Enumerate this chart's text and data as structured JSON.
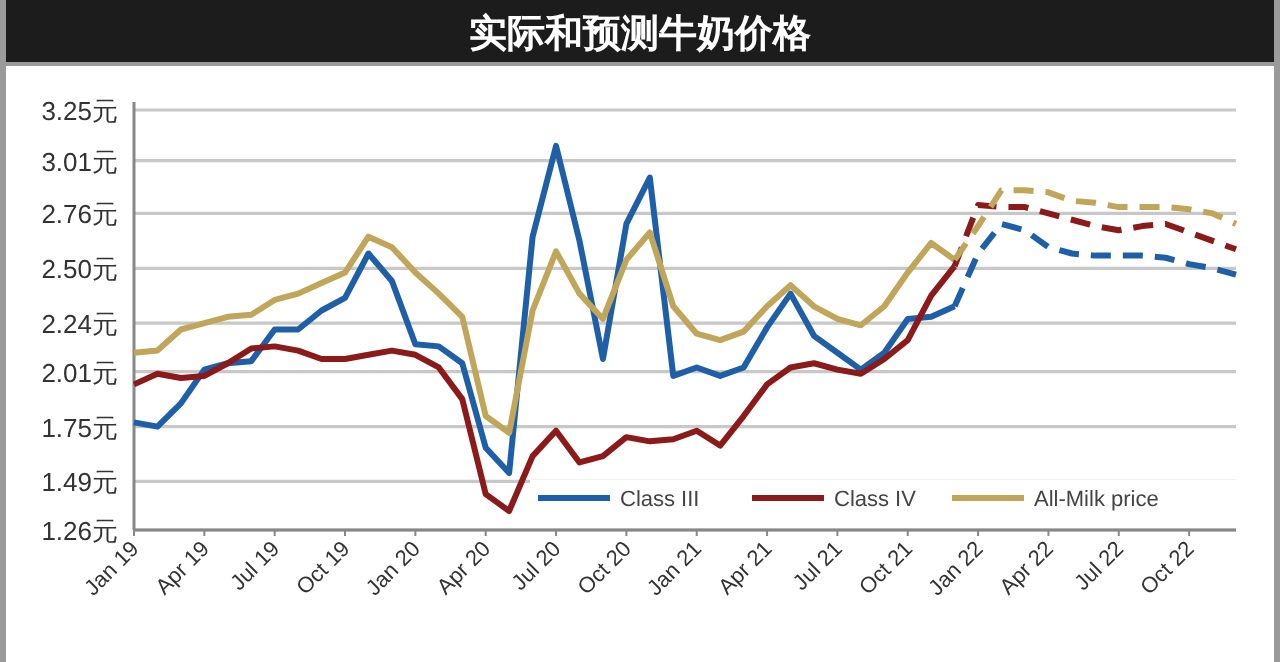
{
  "chart_data": {
    "type": "line",
    "title": "实际和预测牛奶价格",
    "xlim": [
      "2019-01",
      "2022-12"
    ],
    "xticks": [
      {
        "value": "2019-01",
        "label": "Jan 19"
      },
      {
        "value": "2019-04",
        "label": "Apr 19"
      },
      {
        "value": "2019-07",
        "label": "Jul 19"
      },
      {
        "value": "2019-10",
        "label": "Oct 19"
      },
      {
        "value": "2020-01",
        "label": "Jan 20"
      },
      {
        "value": "2020-04",
        "label": "Apr 20"
      },
      {
        "value": "2020-07",
        "label": "Jul 20"
      },
      {
        "value": "2020-10",
        "label": "Oct 20"
      },
      {
        "value": "2021-01",
        "label": "Jan 21"
      },
      {
        "value": "2021-04",
        "label": "Apr 21"
      },
      {
        "value": "2021-07",
        "label": "Jul 21"
      },
      {
        "value": "2021-10",
        "label": "Oct 21"
      },
      {
        "value": "2022-01",
        "label": "Jan 22"
      },
      {
        "value": "2022-04",
        "label": "Apr 22"
      },
      {
        "value": "2022-07",
        "label": "Jul 22"
      },
      {
        "value": "2022-10",
        "label": "Oct 22"
      }
    ],
    "ylim": [
      1.26,
      3.25
    ],
    "yticks": [
      {
        "value": 1.26,
        "label": "1.26元"
      },
      {
        "value": 1.49,
        "label": "1.49元"
      },
      {
        "value": 1.75,
        "label": "1.75元"
      },
      {
        "value": 2.01,
        "label": "2.01元"
      },
      {
        "value": 2.24,
        "label": "2.24元"
      },
      {
        "value": 2.5,
        "label": "2.50元"
      },
      {
        "value": 2.76,
        "label": "2.76元"
      },
      {
        "value": 3.01,
        "label": "3.01元"
      },
      {
        "value": 3.25,
        "label": "3.25元"
      }
    ],
    "grid": "y",
    "legend": "bottom right",
    "marker": "none",
    "series": [
      {
        "name": "Class III",
        "color": "#1f5fa8",
        "line_style": "solid",
        "x": [
          "2019-01",
          "2019-02",
          "2019-03",
          "2019-04",
          "2019-05",
          "2019-06",
          "2019-07",
          "2019-08",
          "2019-09",
          "2019-10",
          "2019-11",
          "2019-12",
          "2020-01",
          "2020-02",
          "2020-03",
          "2020-04",
          "2020-05",
          "2020-06",
          "2020-07",
          "2020-08",
          "2020-09",
          "2020-10",
          "2020-11",
          "2020-12",
          "2021-01",
          "2021-02",
          "2021-03",
          "2021-04",
          "2021-05",
          "2021-06",
          "2021-07",
          "2021-08",
          "2021-09",
          "2021-10",
          "2021-11",
          "2021-12"
        ],
        "values": [
          1.77,
          1.75,
          1.86,
          2.02,
          2.05,
          2.06,
          2.21,
          2.21,
          2.3,
          2.36,
          2.57,
          2.44,
          2.14,
          2.13,
          2.05,
          1.65,
          1.53,
          2.65,
          3.08,
          2.63,
          2.07,
          2.71,
          2.93,
          1.99,
          2.03,
          1.99,
          2.03,
          2.22,
          2.38,
          2.18,
          2.1,
          2.02,
          2.1,
          2.26,
          2.27,
          2.32
        ]
      },
      {
        "name": "Class IV",
        "color": "#8b1a1a",
        "line_style": "solid",
        "x": [
          "2019-01",
          "2019-02",
          "2019-03",
          "2019-04",
          "2019-05",
          "2019-06",
          "2019-07",
          "2019-08",
          "2019-09",
          "2019-10",
          "2019-11",
          "2019-12",
          "2020-01",
          "2020-02",
          "2020-03",
          "2020-04",
          "2020-05",
          "2020-06",
          "2020-07",
          "2020-08",
          "2020-09",
          "2020-10",
          "2020-11",
          "2020-12",
          "2021-01",
          "2021-02",
          "2021-03",
          "2021-04",
          "2021-05",
          "2021-06",
          "2021-07",
          "2021-08",
          "2021-09",
          "2021-10",
          "2021-11",
          "2021-12"
        ],
        "values": [
          1.95,
          2.0,
          1.98,
          1.99,
          2.05,
          2.12,
          2.13,
          2.11,
          2.07,
          2.07,
          2.09,
          2.11,
          2.09,
          2.03,
          1.88,
          1.43,
          1.35,
          1.61,
          1.73,
          1.58,
          1.61,
          1.7,
          1.68,
          1.69,
          1.73,
          1.66,
          1.8,
          1.95,
          2.03,
          2.05,
          2.02,
          2.0,
          2.07,
          2.16,
          2.37,
          2.51
        ]
      },
      {
        "name": "All-Milk price",
        "color": "#bfa65a",
        "line_style": "solid",
        "x": [
          "2019-01",
          "2019-02",
          "2019-03",
          "2019-04",
          "2019-05",
          "2019-06",
          "2019-07",
          "2019-08",
          "2019-09",
          "2019-10",
          "2019-11",
          "2019-12",
          "2020-01",
          "2020-02",
          "2020-03",
          "2020-04",
          "2020-05",
          "2020-06",
          "2020-07",
          "2020-08",
          "2020-09",
          "2020-10",
          "2020-11",
          "2020-12",
          "2021-01",
          "2021-02",
          "2021-03",
          "2021-04",
          "2021-05",
          "2021-06",
          "2021-07",
          "2021-08",
          "2021-09",
          "2021-10",
          "2021-11",
          "2021-12"
        ],
        "values": [
          2.1,
          2.11,
          2.21,
          2.24,
          2.27,
          2.28,
          2.35,
          2.38,
          2.43,
          2.48,
          2.65,
          2.6,
          2.48,
          2.38,
          2.27,
          1.8,
          1.72,
          2.3,
          2.58,
          2.38,
          2.26,
          2.54,
          2.67,
          2.32,
          2.19,
          2.16,
          2.2,
          2.32,
          2.42,
          2.32,
          2.26,
          2.23,
          2.32,
          2.48,
          2.62,
          2.54
        ]
      },
      {
        "color": "#1f5fa8",
        "line_style": "dashed",
        "x": [
          "2021-12",
          "2022-01",
          "2022-02",
          "2022-03",
          "2022-04",
          "2022-05",
          "2022-06",
          "2022-07",
          "2022-08",
          "2022-09",
          "2022-10",
          "2022-11",
          "2022-12"
        ],
        "values": [
          2.32,
          2.57,
          2.71,
          2.68,
          2.6,
          2.57,
          2.56,
          2.56,
          2.56,
          2.55,
          2.52,
          2.5,
          2.47
        ]
      },
      {
        "color": "#8b1a1a",
        "line_style": "dashed",
        "x": [
          "2021-12",
          "2022-01",
          "2022-02",
          "2022-03",
          "2022-04",
          "2022-05",
          "2022-06",
          "2022-07",
          "2022-08",
          "2022-09",
          "2022-10",
          "2022-11",
          "2022-12"
        ],
        "values": [
          2.51,
          2.8,
          2.79,
          2.79,
          2.76,
          2.73,
          2.7,
          2.68,
          2.7,
          2.71,
          2.67,
          2.63,
          2.59
        ]
      },
      {
        "color": "#bfa65a",
        "line_style": "dashed",
        "x": [
          "2021-12",
          "2022-01",
          "2022-02",
          "2022-03",
          "2022-04",
          "2022-05",
          "2022-06",
          "2022-07",
          "2022-08",
          "2022-09",
          "2022-10",
          "2022-11",
          "2022-12"
        ],
        "values": [
          2.54,
          2.7,
          2.87,
          2.87,
          2.86,
          2.82,
          2.81,
          2.79,
          2.79,
          2.79,
          2.78,
          2.76,
          2.71
        ]
      }
    ]
  }
}
